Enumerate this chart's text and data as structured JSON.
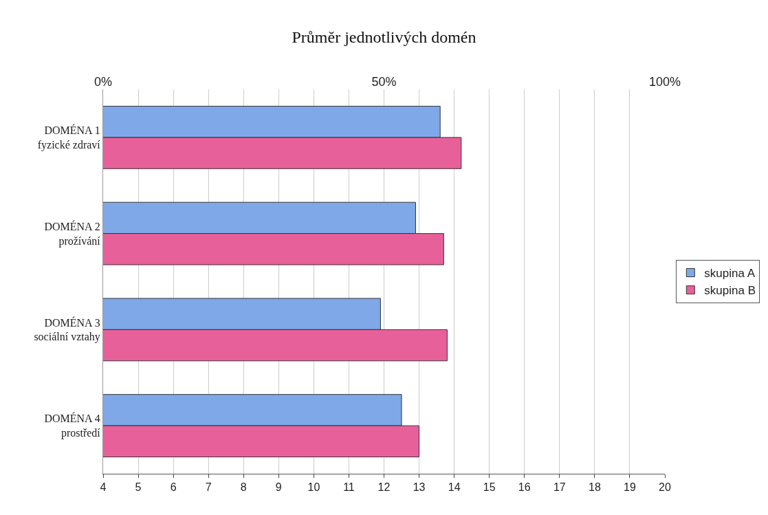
{
  "chart_data": {
    "type": "bar",
    "orientation": "horizontal",
    "title": "Průměr jednotlivých domén",
    "categories": [
      "DOMÉNA 1\nfyzické zdraví",
      "DOMÉNA 2\nprožívání",
      "DOMÉNA 3\nsociální vztahy",
      "DOMÉNA 4\nprostředí"
    ],
    "series": [
      {
        "name": "skupina A",
        "color": "#7fa8e8",
        "values": [
          13.6,
          12.9,
          11.9,
          12.5
        ]
      },
      {
        "name": "skupina B",
        "color": "#e8609a",
        "values": [
          14.2,
          13.7,
          13.8,
          13.0
        ]
      }
    ],
    "xlim": [
      4,
      20
    ],
    "xticks": [
      4,
      5,
      6,
      7,
      8,
      9,
      10,
      11,
      12,
      13,
      14,
      15,
      16,
      17,
      18,
      19,
      20
    ],
    "x2lim": [
      0,
      100
    ],
    "x2ticks": [
      {
        "value": 0,
        "label": "0%"
      },
      {
        "value": 50,
        "label": "50%"
      },
      {
        "value": 100,
        "label": "100%"
      }
    ],
    "grid": "x",
    "legend": "right"
  }
}
